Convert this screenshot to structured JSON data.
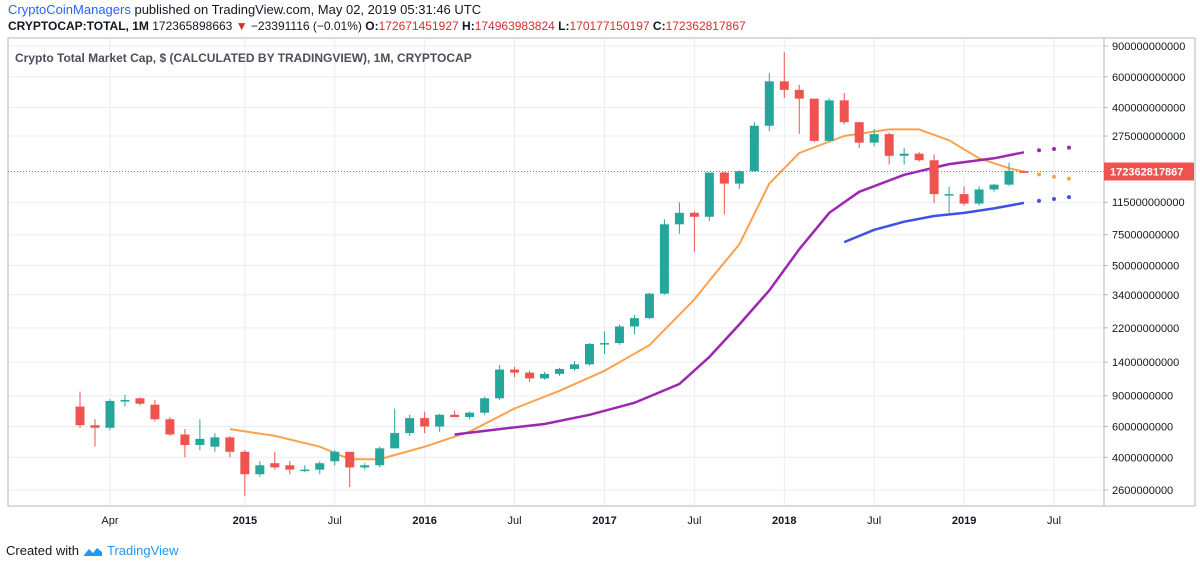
{
  "header": {
    "author": "CryptoCoinManagers",
    "published_text": "published on TradingView.com, May 02, 2019 05:31:46 UTC",
    "symbol": "CRYPTOCAP:TOTAL, 1M",
    "last_value": "172365898663",
    "change_arrow": "▼",
    "change": "−23391116 (−0.01%)",
    "o_label": "O:",
    "o_value": "172671451927",
    "h_label": "H:",
    "h_value": "174963983824",
    "l_label": "L:",
    "l_value": "170177150197",
    "c_label": "C:",
    "c_value": "172362817867"
  },
  "footer": {
    "created_with": "Created with",
    "brand": "TradingView"
  },
  "colors": {
    "up": "#26a69a",
    "down": "#ef5350",
    "ma_orange": "#ffa04d",
    "ma_purple": "#9c27b0",
    "ma_blue": "#3f51e6",
    "grid": "#e9edf2",
    "price_line": "#ef5350"
  },
  "chart_data": {
    "type": "candlestick",
    "title": "Crypto Total Market Cap, $ (CALCULATED BY TRADINGVIEW), 1M, CRYPTOCAP",
    "y_scale": "log",
    "y_ticks": [
      900000000000,
      600000000000,
      400000000000,
      275000000000,
      115000000000,
      75000000000,
      50000000000,
      34000000000,
      22000000000,
      14000000000,
      9000000000,
      6000000000,
      4000000000,
      2600000000
    ],
    "y_tick_labels": [
      "900000000000",
      "600000000000",
      "400000000000",
      "275000000000",
      "115000000000",
      "75000000000",
      "50000000000",
      "34000000000",
      "22000000000",
      "14000000000",
      "9000000000",
      "6000000000",
      "4000000000",
      "2600000000"
    ],
    "x_tick_labels": [
      "Apr",
      "2015",
      "Jul",
      "2016",
      "Jul",
      "2017",
      "Jul",
      "2018",
      "Jul",
      "2019",
      "Jul"
    ],
    "x_tick_months": [
      "2014-04",
      "2015-01",
      "2015-07",
      "2016-01",
      "2016-07",
      "2017-01",
      "2017-07",
      "2018-01",
      "2018-07",
      "2019-01",
      "2019-07"
    ],
    "last_price_label": "172362817867",
    "last_price": 172362817867,
    "candles": [
      {
        "t": "2014-02",
        "o": 7800000000.0,
        "h": 9500000000.0,
        "l": 5900000000.0,
        "c": 6100000000.0
      },
      {
        "t": "2014-03",
        "o": 6100000000.0,
        "h": 6600000000.0,
        "l": 4600000000.0,
        "c": 5900000000.0
      },
      {
        "t": "2014-04",
        "o": 5900000000.0,
        "h": 8600000000.0,
        "l": 5700000000.0,
        "c": 8400000000.0
      },
      {
        "t": "2014-05",
        "o": 8400000000.0,
        "h": 9100000000.0,
        "l": 7800000000.0,
        "c": 8500000000.0
      },
      {
        "t": "2014-06",
        "o": 8700000000.0,
        "h": 8800000000.0,
        "l": 7900000000.0,
        "c": 8100000000.0
      },
      {
        "t": "2014-07",
        "o": 8000000000.0,
        "h": 8500000000.0,
        "l": 6400000000.0,
        "c": 6600000000.0
      },
      {
        "t": "2014-08",
        "o": 6600000000.0,
        "h": 6800000000.0,
        "l": 5300000000.0,
        "c": 5400000000.0
      },
      {
        "t": "2014-09",
        "o": 5400000000.0,
        "h": 5800000000.0,
        "l": 4000000000.0,
        "c": 4700000000.0
      },
      {
        "t": "2014-10",
        "o": 4700000000.0,
        "h": 6600000000.0,
        "l": 4400000000.0,
        "c": 5100000000.0
      },
      {
        "t": "2014-11",
        "o": 4600000000.0,
        "h": 5500000000.0,
        "l": 4300000000.0,
        "c": 5200000000.0
      },
      {
        "t": "2014-12",
        "o": 5200000000.0,
        "h": 5300000000.0,
        "l": 4000000000.0,
        "c": 4300000000.0
      },
      {
        "t": "2015-01",
        "o": 4300000000.0,
        "h": 4400000000.0,
        "l": 2400000000.0,
        "c": 3200000000.0
      },
      {
        "t": "2015-02",
        "o": 3200000000.0,
        "h": 3800000000.0,
        "l": 3100000000.0,
        "c": 3600000000.0
      },
      {
        "t": "2015-03",
        "o": 3700000000.0,
        "h": 4300000000.0,
        "l": 3400000000.0,
        "c": 3500000000.0
      },
      {
        "t": "2015-04",
        "o": 3600000000.0,
        "h": 3800000000.0,
        "l": 3200000000.0,
        "c": 3400000000.0
      },
      {
        "t": "2015-05",
        "o": 3400000000.0,
        "h": 3600000000.0,
        "l": 3300000000.0,
        "c": 3400000000.0
      },
      {
        "t": "2015-06",
        "o": 3400000000.0,
        "h": 3800000000.0,
        "l": 3200000000.0,
        "c": 3700000000.0
      },
      {
        "t": "2015-07",
        "o": 3800000000.0,
        "h": 4400000000.0,
        "l": 3600000000.0,
        "c": 4300000000.0
      },
      {
        "t": "2015-08",
        "o": 4300000000.0,
        "h": 4300000000.0,
        "l": 2700000000.0,
        "c": 3500000000.0
      },
      {
        "t": "2015-09",
        "o": 3500000000.0,
        "h": 3700000000.0,
        "l": 3400000000.0,
        "c": 3600000000.0
      },
      {
        "t": "2015-10",
        "o": 3600000000.0,
        "h": 4600000000.0,
        "l": 3500000000.0,
        "c": 4500000000.0
      },
      {
        "t": "2015-11",
        "o": 4500000000.0,
        "h": 7600000000.0,
        "l": 4500000000.0,
        "c": 5500000000.0
      },
      {
        "t": "2015-12",
        "o": 5500000000.0,
        "h": 7000000000.0,
        "l": 5300000000.0,
        "c": 6700000000.0
      },
      {
        "t": "2016-01",
        "o": 6700000000.0,
        "h": 7300000000.0,
        "l": 5500000000.0,
        "c": 6000000000.0
      },
      {
        "t": "2016-02",
        "o": 6000000000.0,
        "h": 7100000000.0,
        "l": 5600000000.0,
        "c": 7000000000.0
      },
      {
        "t": "2016-03",
        "o": 7000000000.0,
        "h": 7400000000.0,
        "l": 6800000000.0,
        "c": 6800000000.0
      },
      {
        "t": "2016-04",
        "o": 6800000000.0,
        "h": 7300000000.0,
        "l": 6600000000.0,
        "c": 7200000000.0
      },
      {
        "t": "2016-05",
        "o": 7200000000.0,
        "h": 8900000000.0,
        "l": 7000000000.0,
        "c": 8700000000.0
      },
      {
        "t": "2016-06",
        "o": 8700000000.0,
        "h": 13500000000.0,
        "l": 8500000000.0,
        "c": 12700000000.0
      },
      {
        "t": "2016-07",
        "o": 12700000000.0,
        "h": 13200000000.0,
        "l": 11500000000.0,
        "c": 12200000000.0
      },
      {
        "t": "2016-08",
        "o": 12200000000.0,
        "h": 12500000000.0,
        "l": 10800000000.0,
        "c": 11300000000.0
      },
      {
        "t": "2016-09",
        "o": 11300000000.0,
        "h": 12300000000.0,
        "l": 11100000000.0,
        "c": 12000000000.0
      },
      {
        "t": "2016-10",
        "o": 12000000000.0,
        "h": 13000000000.0,
        "l": 11700000000.0,
        "c": 12800000000.0
      },
      {
        "t": "2016-11",
        "o": 12800000000.0,
        "h": 14200000000.0,
        "l": 12500000000.0,
        "c": 13600000000.0
      },
      {
        "t": "2016-12",
        "o": 13600000000.0,
        "h": 18000000000.0,
        "l": 13400000000.0,
        "c": 17800000000.0
      },
      {
        "t": "2017-01",
        "o": 17800000000.0,
        "h": 21000000000.0,
        "l": 15600000000.0,
        "c": 18000000000.0
      },
      {
        "t": "2017-02",
        "o": 18000000000.0,
        "h": 23000000000.0,
        "l": 17600000000.0,
        "c": 22400000000.0
      },
      {
        "t": "2017-03",
        "o": 22400000000.0,
        "h": 26000000000.0,
        "l": 20200000000.0,
        "c": 25000000000.0
      },
      {
        "t": "2017-04",
        "o": 25000000000.0,
        "h": 35000000000.0,
        "l": 24600000000.0,
        "c": 34500000000.0
      },
      {
        "t": "2017-05",
        "o": 34500000000.0,
        "h": 92000000000.0,
        "l": 34000000000.0,
        "c": 86000000000.0
      },
      {
        "t": "2017-06",
        "o": 86000000000.0,
        "h": 115000000000.0,
        "l": 76000000000.0,
        "c": 100000000000.0
      },
      {
        "t": "2017-07",
        "o": 100000000000.0,
        "h": 102000000000.0,
        "l": 60000000000.0,
        "c": 95000000000.0
      },
      {
        "t": "2017-08",
        "o": 95000000000.0,
        "h": 170000000000.0,
        "l": 90000000000.0,
        "c": 170000000000.0
      },
      {
        "t": "2017-09",
        "o": 170000000000.0,
        "h": 172000000000.0,
        "l": 98000000000.0,
        "c": 147000000000.0
      },
      {
        "t": "2017-10",
        "o": 147000000000.0,
        "h": 175000000000.0,
        "l": 137000000000.0,
        "c": 173000000000.0
      },
      {
        "t": "2017-11",
        "o": 173000000000.0,
        "h": 330000000000.0,
        "l": 172000000000.0,
        "c": 315000000000.0
      },
      {
        "t": "2017-12",
        "o": 315000000000.0,
        "h": 630000000000.0,
        "l": 293000000000.0,
        "c": 565000000000.0
      },
      {
        "t": "2018-01",
        "o": 565000000000.0,
        "h": 828000000000.0,
        "l": 455000000000.0,
        "c": 505000000000.0
      },
      {
        "t": "2018-02",
        "o": 505000000000.0,
        "h": 540000000000.0,
        "l": 283000000000.0,
        "c": 450000000000.0
      },
      {
        "t": "2018-03",
        "o": 450000000000.0,
        "h": 450000000000.0,
        "l": 253000000000.0,
        "c": 258000000000.0
      },
      {
        "t": "2018-04",
        "o": 258000000000.0,
        "h": 452000000000.0,
        "l": 257000000000.0,
        "c": 440000000000.0
      },
      {
        "t": "2018-05",
        "o": 440000000000.0,
        "h": 485000000000.0,
        "l": 320000000000.0,
        "c": 330000000000.0
      },
      {
        "t": "2018-06",
        "o": 330000000000.0,
        "h": 332000000000.0,
        "l": 235000000000.0,
        "c": 252000000000.0
      },
      {
        "t": "2018-07",
        "o": 252000000000.0,
        "h": 302000000000.0,
        "l": 240000000000.0,
        "c": 282000000000.0
      },
      {
        "t": "2018-08",
        "o": 282000000000.0,
        "h": 288000000000.0,
        "l": 189000000000.0,
        "c": 212000000000.0
      },
      {
        "t": "2018-09",
        "o": 212000000000.0,
        "h": 235000000000.0,
        "l": 189000000000.0,
        "c": 218000000000.0
      },
      {
        "t": "2018-10",
        "o": 218000000000.0,
        "h": 223000000000.0,
        "l": 196000000000.0,
        "c": 200000000000.0
      },
      {
        "t": "2018-11",
        "o": 200000000000.0,
        "h": 216000000000.0,
        "l": 114000000000.0,
        "c": 128000000000.0
      },
      {
        "t": "2018-12",
        "o": 128000000000.0,
        "h": 141000000000.0,
        "l": 100000000000.0,
        "c": 128000000000.0
      },
      {
        "t": "2019-01",
        "o": 128000000000.0,
        "h": 142000000000.0,
        "l": 110000000000.0,
        "c": 113000000000.0
      },
      {
        "t": "2019-02",
        "o": 113000000000.0,
        "h": 142000000000.0,
        "l": 110000000000.0,
        "c": 136000000000.0
      },
      {
        "t": "2019-03",
        "o": 136000000000.0,
        "h": 146000000000.0,
        "l": 132000000000.0,
        "c": 145000000000.0
      },
      {
        "t": "2019-04",
        "o": 145000000000.0,
        "h": 194000000000.0,
        "l": 143000000000.0,
        "c": 174000000000.0
      },
      {
        "t": "2019-05",
        "o": 172671451927,
        "h": 174963983824,
        "l": 170177150197,
        "c": 172362817867
      }
    ],
    "series": [
      {
        "color": "orange",
        "points": [
          [
            "2014-12",
            5800000000.0
          ],
          [
            "2015-03",
            5300000000.0
          ],
          [
            "2015-06",
            4600000000.0
          ],
          [
            "2015-08",
            3900000000.0
          ],
          [
            "2015-10",
            3900000000.0
          ],
          [
            "2016-01",
            4600000000.0
          ],
          [
            "2016-04",
            5600000000.0
          ],
          [
            "2016-07",
            7600000000.0
          ],
          [
            "2016-10",
            9600000000.0
          ],
          [
            "2017-01",
            12500000000.0
          ],
          [
            "2017-04",
            17500000000.0
          ],
          [
            "2017-07",
            32000000000.0
          ],
          [
            "2017-08",
            41000000000.0
          ],
          [
            "2017-10",
            66000000000.0
          ],
          [
            "2017-12",
            147000000000.0
          ],
          [
            "2018-02",
            220000000000.0
          ],
          [
            "2018-05",
            275000000000.0
          ],
          [
            "2018-08",
            300000000000.0
          ],
          [
            "2018-10",
            300000000000.0
          ],
          [
            "2018-12",
            260000000000.0
          ],
          [
            "2019-02",
            205000000000.0
          ],
          [
            "2019-04",
            180000000000.0
          ],
          [
            "2019-05",
            172000000000.0
          ]
        ]
      },
      {
        "color": "orange",
        "dotted": true,
        "points": [
          [
            "2019-06",
            166000000000.0
          ],
          [
            "2019-07",
            161000000000.0
          ],
          [
            "2019-08",
            157000000000.0
          ]
        ]
      },
      {
        "color": "purple",
        "points": [
          [
            "2016-03",
            5400000000.0
          ],
          [
            "2016-06",
            5800000000.0
          ],
          [
            "2016-09",
            6200000000.0
          ],
          [
            "2016-12",
            7000000000.0
          ],
          [
            "2017-03",
            8200000000.0
          ],
          [
            "2017-06",
            10500000000.0
          ],
          [
            "2017-08",
            15000000000.0
          ],
          [
            "2017-10",
            23000000000.0
          ],
          [
            "2017-12",
            36000000000.0
          ],
          [
            "2018-02",
            62000000000.0
          ],
          [
            "2018-04",
            100000000000.0
          ],
          [
            "2018-06",
            132000000000.0
          ],
          [
            "2018-09",
            165000000000.0
          ],
          [
            "2018-12",
            190000000000.0
          ],
          [
            "2019-03",
            205000000000.0
          ],
          [
            "2019-05",
            222000000000.0
          ]
        ]
      },
      {
        "color": "purple",
        "dotted": true,
        "points": [
          [
            "2019-06",
            228000000000.0
          ],
          [
            "2019-07",
            232000000000.0
          ],
          [
            "2019-08",
            236000000000.0
          ]
        ]
      },
      {
        "color": "blue",
        "points": [
          [
            "2018-05",
            68000000000.0
          ],
          [
            "2018-07",
            80000000000.0
          ],
          [
            "2018-09",
            89000000000.0
          ],
          [
            "2018-11",
            96000000000.0
          ],
          [
            "2019-01",
            100000000000.0
          ],
          [
            "2019-03",
            106000000000.0
          ],
          [
            "2019-05",
            114000000000.0
          ]
        ]
      },
      {
        "color": "blue",
        "dotted": true,
        "points": [
          [
            "2019-06",
            117000000000.0
          ],
          [
            "2019-07",
            120000000000.0
          ],
          [
            "2019-08",
            123000000000.0
          ]
        ]
      }
    ]
  }
}
